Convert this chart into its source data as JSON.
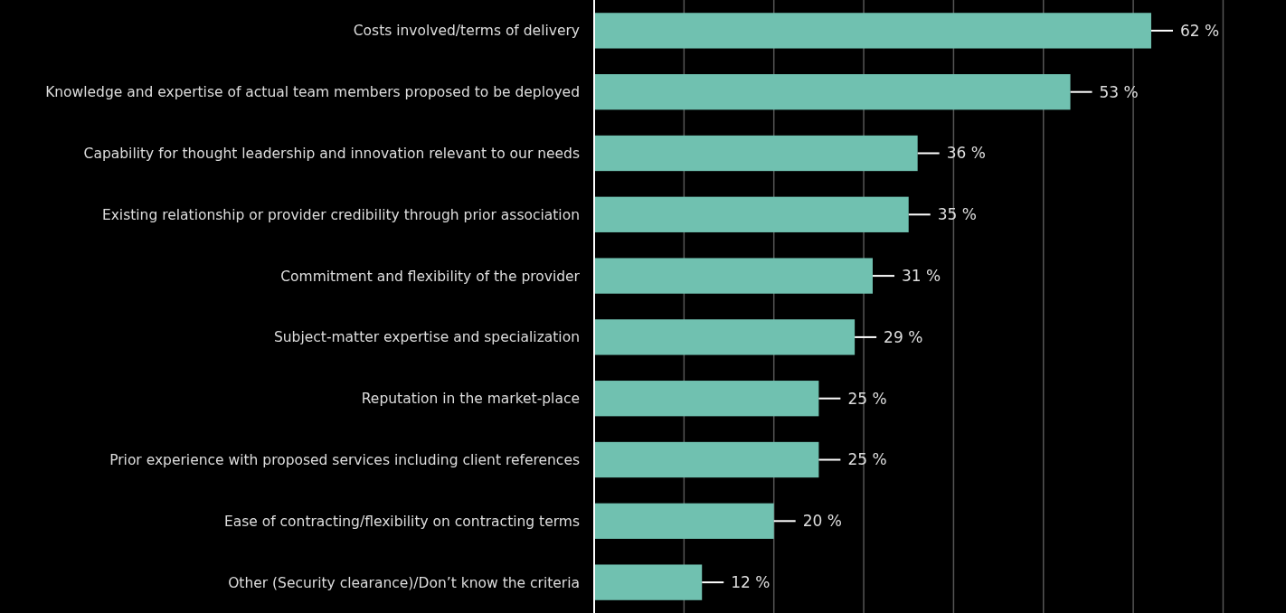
{
  "chart_data": {
    "type": "bar",
    "orientation": "horizontal",
    "categories": [
      "Costs involved/terms of delivery",
      "Knowledge and expertise of actual team members proposed to be deployed",
      "Capability for thought leadership and innovation relevant to our needs",
      "Existing relationship or provider credibility through prior association",
      "Commitment and flexibility of the provider",
      "Subject-matter expertise and specialization",
      "Reputation in the market-place",
      "Prior experience with proposed services including client references",
      "Ease of contracting/flexibility on contracting terms",
      "Other (Security clearance)/Don’t know the criteria"
    ],
    "values": [
      62,
      53,
      36,
      35,
      31,
      29,
      25,
      25,
      20,
      12
    ],
    "value_labels": [
      "62 %",
      "53 %",
      "36 %",
      "35 %",
      "31 %",
      "29 %",
      "25 %",
      "25 %",
      "20 %",
      "12 %"
    ],
    "color": "#70c1b0",
    "xlim": [
      0,
      77
    ],
    "xticks": [
      {
        "value": 0,
        "label": null
      },
      {
        "value": 10,
        "label": null
      },
      {
        "value": 20,
        "label": null
      },
      {
        "value": 30,
        "label": null
      },
      {
        "value": 40,
        "label": null
      },
      {
        "value": 50,
        "label": null
      },
      {
        "value": 60,
        "label": null
      },
      {
        "value": 70,
        "label": null
      }
    ],
    "grid": "x",
    "tick_labels": "y"
  }
}
